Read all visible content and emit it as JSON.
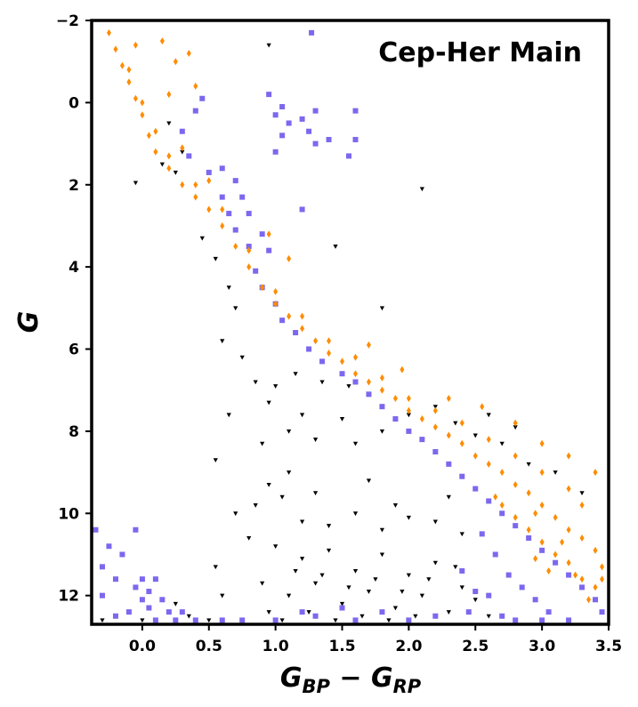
{
  "chart_data": {
    "type": "scatter",
    "title": "Cep-Her Main",
    "xlabel": {
      "main": "G",
      "sub1": "BP",
      "op": " − ",
      "main2": "G",
      "sub2": "RP"
    },
    "ylabel": "G",
    "xlim": [
      -0.38,
      3.5
    ],
    "ylim": [
      12.7,
      -2.0
    ],
    "y_inverted": true,
    "grid": false,
    "legend": "none",
    "x_ticks": [
      {
        "value": 0.0,
        "label": "0.0"
      },
      {
        "value": 0.5,
        "label": "0.5"
      },
      {
        "value": 1.0,
        "label": "1.0"
      },
      {
        "value": 1.5,
        "label": "1.5"
      },
      {
        "value": 2.0,
        "label": "2.0"
      },
      {
        "value": 2.5,
        "label": "2.5"
      },
      {
        "value": 3.0,
        "label": "3.0"
      },
      {
        "value": 3.5,
        "label": "3.5"
      }
    ],
    "y_ticks": [
      {
        "value": -2,
        "label": "−2"
      },
      {
        "value": 0,
        "label": "0"
      },
      {
        "value": 2,
        "label": "2"
      },
      {
        "value": 4,
        "label": "4"
      },
      {
        "value": 6,
        "label": "6"
      },
      {
        "value": 8,
        "label": "8"
      },
      {
        "value": 10,
        "label": "10"
      },
      {
        "value": 12,
        "label": "12"
      }
    ],
    "series": [
      {
        "color": "#000000",
        "marker": "triangle-down",
        "points": [
          [
            0.95,
            -1.4
          ],
          [
            2.1,
            2.1
          ],
          [
            1.45,
            3.5
          ],
          [
            1.8,
            5.0
          ],
          [
            0.55,
            8.7
          ],
          [
            0.2,
            0.5
          ],
          [
            0.3,
            1.2
          ],
          [
            0.15,
            1.5
          ],
          [
            0.25,
            1.7
          ],
          [
            -0.05,
            1.95
          ],
          [
            0.45,
            3.3
          ],
          [
            0.55,
            3.8
          ],
          [
            0.65,
            4.5
          ],
          [
            0.7,
            5.0
          ],
          [
            0.6,
            5.8
          ],
          [
            0.75,
            6.2
          ],
          [
            0.85,
            6.8
          ],
          [
            0.65,
            7.6
          ],
          [
            0.95,
            7.3
          ],
          [
            1.0,
            6.9
          ],
          [
            0.9,
            8.3
          ],
          [
            1.1,
            8.0
          ],
          [
            0.95,
            9.3
          ],
          [
            0.7,
            10.0
          ],
          [
            0.8,
            10.6
          ],
          [
            0.55,
            11.3
          ],
          [
            0.6,
            12.0
          ],
          [
            0.35,
            12.5
          ],
          [
            0.0,
            12.6
          ],
          [
            -0.3,
            12.6
          ],
          [
            0.25,
            12.2
          ],
          [
            0.5,
            12.6
          ],
          [
            1.2,
            7.6
          ],
          [
            1.3,
            8.2
          ],
          [
            1.5,
            7.7
          ],
          [
            1.6,
            8.3
          ],
          [
            1.8,
            8.0
          ],
          [
            2.0,
            7.6
          ],
          [
            2.2,
            7.4
          ],
          [
            2.35,
            7.8
          ],
          [
            2.5,
            8.1
          ],
          [
            2.7,
            8.3
          ],
          [
            1.1,
            9.0
          ],
          [
            1.3,
            9.5
          ],
          [
            1.7,
            9.2
          ],
          [
            1.9,
            9.8
          ],
          [
            2.2,
            10.2
          ],
          [
            2.4,
            10.5
          ],
          [
            1.0,
            10.8
          ],
          [
            1.2,
            11.1
          ],
          [
            1.4,
            10.9
          ],
          [
            1.6,
            11.4
          ],
          [
            1.8,
            11.0
          ],
          [
            2.0,
            11.5
          ],
          [
            2.2,
            11.2
          ],
          [
            2.4,
            11.8
          ],
          [
            1.1,
            12.0
          ],
          [
            1.3,
            11.7
          ],
          [
            1.5,
            12.2
          ],
          [
            1.7,
            11.9
          ],
          [
            1.9,
            12.3
          ],
          [
            2.1,
            12.0
          ],
          [
            2.3,
            12.4
          ],
          [
            2.5,
            12.1
          ],
          [
            0.95,
            12.4
          ],
          [
            1.05,
            12.6
          ],
          [
            1.25,
            12.4
          ],
          [
            1.45,
            12.6
          ],
          [
            1.65,
            12.5
          ],
          [
            1.85,
            12.6
          ],
          [
            2.05,
            12.5
          ],
          [
            2.6,
            12.5
          ],
          [
            1.35,
            11.5
          ],
          [
            1.55,
            11.8
          ],
          [
            1.75,
            11.6
          ],
          [
            1.95,
            11.9
          ],
          [
            2.15,
            11.6
          ],
          [
            2.35,
            11.3
          ],
          [
            1.15,
            11.4
          ],
          [
            0.9,
            11.7
          ],
          [
            1.4,
            10.3
          ],
          [
            1.6,
            10.0
          ],
          [
            1.8,
            10.4
          ],
          [
            2.0,
            10.1
          ],
          [
            2.3,
            9.6
          ],
          [
            1.2,
            10.2
          ],
          [
            0.85,
            9.8
          ],
          [
            1.05,
            9.6
          ],
          [
            2.6,
            7.6
          ],
          [
            2.9,
            8.8
          ],
          [
            3.1,
            9.0
          ],
          [
            3.3,
            9.5
          ],
          [
            2.8,
            7.9
          ],
          [
            1.55,
            6.9
          ],
          [
            1.35,
            6.8
          ],
          [
            1.15,
            6.6
          ]
        ]
      },
      {
        "color": "#7b68ee",
        "marker": "square",
        "points": [
          [
            1.27,
            -1.7
          ],
          [
            0.95,
            -0.2
          ],
          [
            1.05,
            0.1
          ],
          [
            1.0,
            0.3
          ],
          [
            1.1,
            0.5
          ],
          [
            1.2,
            0.4
          ],
          [
            1.05,
            0.8
          ],
          [
            1.25,
            0.7
          ],
          [
            1.3,
            1.0
          ],
          [
            1.4,
            0.9
          ],
          [
            1.6,
            0.9
          ],
          [
            1.0,
            1.2
          ],
          [
            0.45,
            -0.1
          ],
          [
            0.4,
            0.2
          ],
          [
            0.3,
            0.7
          ],
          [
            0.35,
            1.3
          ],
          [
            0.5,
            1.7
          ],
          [
            0.6,
            1.6
          ],
          [
            0.7,
            1.9
          ],
          [
            0.75,
            2.3
          ],
          [
            0.8,
            2.7
          ],
          [
            0.9,
            3.2
          ],
          [
            1.2,
            2.6
          ],
          [
            0.95,
            3.6
          ],
          [
            0.6,
            2.3
          ],
          [
            0.65,
            2.7
          ],
          [
            0.7,
            3.1
          ],
          [
            0.8,
            3.5
          ],
          [
            0.85,
            4.1
          ],
          [
            0.9,
            4.5
          ],
          [
            1.0,
            4.9
          ],
          [
            1.05,
            5.3
          ],
          [
            1.15,
            5.6
          ],
          [
            1.25,
            6.0
          ],
          [
            1.35,
            6.3
          ],
          [
            1.5,
            6.6
          ],
          [
            1.6,
            6.8
          ],
          [
            1.7,
            7.1
          ],
          [
            1.8,
            7.4
          ],
          [
            1.9,
            7.7
          ],
          [
            2.0,
            8.0
          ],
          [
            2.1,
            8.2
          ],
          [
            2.2,
            8.5
          ],
          [
            2.3,
            8.8
          ],
          [
            2.4,
            9.1
          ],
          [
            2.5,
            9.4
          ],
          [
            2.6,
            9.7
          ],
          [
            2.7,
            10.0
          ],
          [
            2.8,
            10.3
          ],
          [
            2.9,
            10.6
          ],
          [
            3.0,
            10.9
          ],
          [
            3.1,
            11.2
          ],
          [
            3.2,
            11.5
          ],
          [
            3.3,
            11.8
          ],
          [
            3.4,
            12.1
          ],
          [
            3.45,
            12.4
          ],
          [
            2.55,
            10.5
          ],
          [
            2.65,
            11.0
          ],
          [
            2.75,
            11.5
          ],
          [
            2.85,
            11.8
          ],
          [
            2.95,
            12.1
          ],
          [
            3.05,
            12.4
          ],
          [
            2.6,
            12.0
          ],
          [
            2.7,
            12.5
          ],
          [
            2.4,
            11.4
          ],
          [
            2.5,
            11.9
          ],
          [
            2.45,
            12.4
          ],
          [
            2.8,
            12.6
          ],
          [
            3.0,
            12.6
          ],
          [
            3.2,
            12.6
          ],
          [
            2.2,
            12.5
          ],
          [
            2.0,
            12.6
          ],
          [
            1.6,
            12.6
          ],
          [
            1.3,
            12.5
          ],
          [
            1.0,
            12.6
          ],
          [
            0.75,
            12.6
          ],
          [
            0.6,
            12.6
          ],
          [
            1.8,
            12.4
          ],
          [
            1.5,
            12.3
          ],
          [
            1.2,
            12.4
          ],
          [
            -0.35,
            10.4
          ],
          [
            -0.3,
            11.3
          ],
          [
            -0.25,
            10.8
          ],
          [
            -0.2,
            11.6
          ],
          [
            -0.3,
            12.0
          ],
          [
            -0.15,
            11.0
          ],
          [
            -0.05,
            10.4
          ],
          [
            0.0,
            11.6
          ],
          [
            0.05,
            11.9
          ],
          [
            0.1,
            11.6
          ],
          [
            -0.1,
            12.4
          ],
          [
            -0.2,
            12.5
          ],
          [
            0.15,
            12.1
          ],
          [
            0.2,
            12.4
          ],
          [
            0.25,
            12.6
          ],
          [
            0.1,
            12.6
          ],
          [
            0.05,
            12.3
          ],
          [
            -0.05,
            11.8
          ],
          [
            0.3,
            12.4
          ],
          [
            0.0,
            12.1
          ],
          [
            0.4,
            12.6
          ],
          [
            1.6,
            0.2
          ],
          [
            1.3,
            0.2
          ],
          [
            1.55,
            1.3
          ]
        ]
      },
      {
        "color": "#ff8c00",
        "marker": "diamond",
        "points": [
          [
            -0.25,
            -1.7
          ],
          [
            -0.2,
            -1.3
          ],
          [
            -0.15,
            -0.9
          ],
          [
            -0.1,
            -0.5
          ],
          [
            -0.05,
            -0.1
          ],
          [
            0.0,
            0.3
          ],
          [
            0.05,
            0.8
          ],
          [
            0.1,
            1.2
          ],
          [
            0.2,
            1.6
          ],
          [
            0.3,
            2.0
          ],
          [
            0.4,
            2.3
          ],
          [
            0.5,
            2.6
          ],
          [
            0.6,
            3.0
          ],
          [
            0.7,
            3.5
          ],
          [
            0.8,
            4.0
          ],
          [
            0.9,
            4.5
          ],
          [
            1.0,
            4.9
          ],
          [
            1.1,
            5.2
          ],
          [
            1.2,
            5.5
          ],
          [
            1.3,
            5.8
          ],
          [
            1.4,
            6.1
          ],
          [
            1.5,
            6.3
          ],
          [
            1.6,
            6.6
          ],
          [
            1.7,
            6.8
          ],
          [
            1.8,
            7.0
          ],
          [
            1.9,
            7.2
          ],
          [
            2.0,
            7.5
          ],
          [
            2.1,
            7.7
          ],
          [
            2.2,
            7.9
          ],
          [
            2.3,
            8.1
          ],
          [
            2.4,
            8.3
          ],
          [
            2.5,
            8.6
          ],
          [
            2.6,
            8.8
          ],
          [
            2.7,
            9.0
          ],
          [
            2.8,
            9.3
          ],
          [
            2.9,
            9.5
          ],
          [
            3.0,
            9.8
          ],
          [
            3.1,
            10.1
          ],
          [
            3.2,
            10.4
          ],
          [
            3.3,
            10.6
          ],
          [
            3.4,
            10.9
          ],
          [
            3.45,
            11.3
          ],
          [
            3.4,
            11.8
          ],
          [
            3.3,
            11.6
          ],
          [
            3.2,
            11.2
          ],
          [
            3.1,
            11.0
          ],
          [
            3.0,
            10.7
          ],
          [
            2.9,
            10.4
          ],
          [
            2.8,
            10.1
          ],
          [
            2.7,
            9.8
          ],
          [
            3.35,
            12.1
          ],
          [
            3.3,
            9.8
          ],
          [
            3.2,
            9.4
          ],
          [
            3.0,
            9.0
          ],
          [
            2.8,
            8.6
          ],
          [
            2.6,
            8.2
          ],
          [
            2.4,
            7.8
          ],
          [
            2.2,
            7.5
          ],
          [
            2.0,
            7.2
          ],
          [
            1.8,
            6.7
          ],
          [
            1.6,
            6.2
          ],
          [
            1.4,
            5.8
          ],
          [
            1.2,
            5.2
          ],
          [
            1.0,
            4.6
          ],
          [
            0.8,
            3.6
          ],
          [
            0.6,
            2.6
          ],
          [
            0.4,
            2.0
          ],
          [
            0.2,
            1.3
          ],
          [
            0.1,
            0.7
          ],
          [
            0.0,
            0.0
          ],
          [
            -0.1,
            -0.8
          ],
          [
            -0.05,
            -1.4
          ],
          [
            0.15,
            -1.5
          ],
          [
            0.25,
            -1.0
          ],
          [
            0.35,
            -1.2
          ],
          [
            0.4,
            -0.4
          ],
          [
            0.2,
            -0.2
          ],
          [
            1.7,
            5.9
          ],
          [
            1.95,
            6.5
          ],
          [
            2.3,
            7.2
          ],
          [
            2.55,
            7.4
          ],
          [
            2.8,
            7.8
          ],
          [
            3.0,
            8.3
          ],
          [
            3.2,
            8.6
          ],
          [
            3.4,
            9.0
          ],
          [
            2.65,
            9.6
          ],
          [
            2.95,
            10.0
          ],
          [
            3.15,
            10.7
          ],
          [
            3.25,
            11.5
          ],
          [
            3.45,
            11.6
          ],
          [
            3.05,
            11.4
          ],
          [
            2.95,
            11.1
          ],
          [
            0.95,
            3.2
          ],
          [
            1.1,
            3.8
          ],
          [
            0.5,
            1.9
          ],
          [
            0.3,
            1.1
          ]
        ]
      }
    ]
  }
}
